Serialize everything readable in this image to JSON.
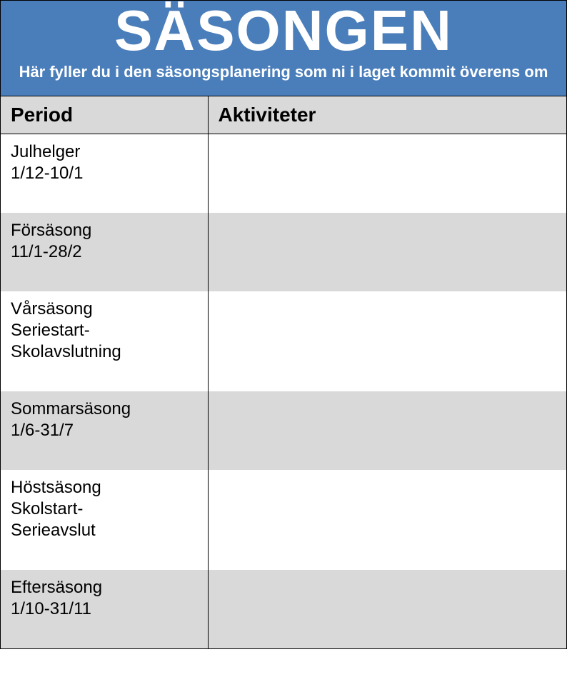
{
  "header": {
    "title": "SÄSONGEN",
    "subtitle": "Här fyller du i den säsongsplanering som ni i laget kommit överens om"
  },
  "columns": {
    "period": "Period",
    "activities": "Aktiviteter"
  },
  "rows": [
    {
      "period": "Julhelger\n1/12-10/1",
      "activity": ""
    },
    {
      "period": "Försäsong\n11/1-28/2",
      "activity": ""
    },
    {
      "period": "Vårsäsong\nSeriestart-\nSkolavslutning",
      "activity": ""
    },
    {
      "period": "Sommarsäsong\n1/6-31/7",
      "activity": ""
    },
    {
      "period": "Höstsäsong\nSkolstart-\nSerieavslut",
      "activity": ""
    },
    {
      "period": "Eftersäsong\n1/10-31/11",
      "activity": ""
    }
  ],
  "colors": {
    "header_bg": "#4a7ebb",
    "header_text": "#ffffff",
    "zebra_light": "#ffffff",
    "zebra_dark": "#d9d9d9",
    "border": "#000000"
  }
}
